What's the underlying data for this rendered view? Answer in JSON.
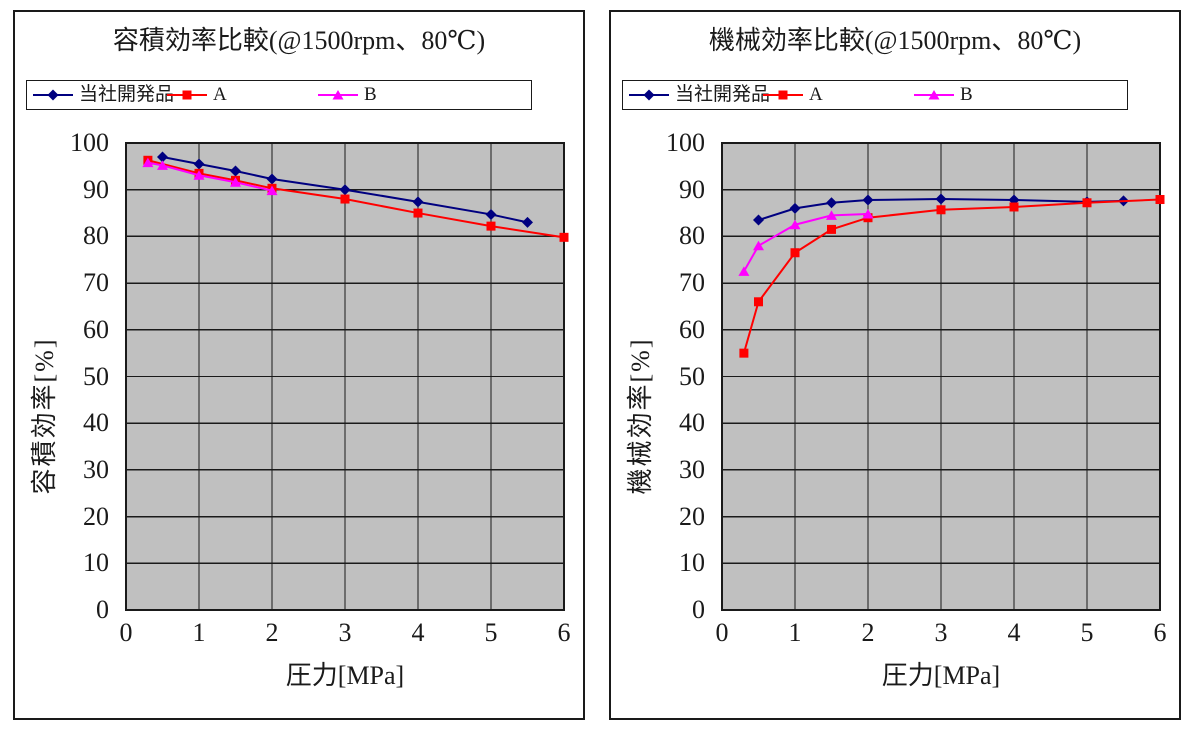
{
  "colors": {
    "series_navy": "#000080",
    "series_red": "#ff0000",
    "series_magenta": "#ff00ff",
    "plot_background": "#c0c0c0",
    "grid_line": "#1a1a1a"
  },
  "chart_data": [
    {
      "type": "line",
      "title": "容積効率比較(@1500rpm、80℃)",
      "xlabel": "圧力[MPa]",
      "ylabel": "容積効率[%]",
      "xlim": [
        0,
        6
      ],
      "ylim": [
        0,
        100
      ],
      "x_ticks": [
        0,
        1,
        2,
        3,
        4,
        5,
        6
      ],
      "y_ticks": [
        0,
        10,
        20,
        30,
        40,
        50,
        60,
        70,
        80,
        90,
        100
      ],
      "grid": true,
      "legend_position": "top",
      "series": [
        {
          "name": "当社開発品",
          "color": "#000080",
          "marker": "diamond",
          "points": [
            [
              0.5,
              97
            ],
            [
              1,
              95.5
            ],
            [
              1.5,
              94
            ],
            [
              2,
              92.3
            ],
            [
              3,
              90
            ],
            [
              4,
              87.4
            ],
            [
              5,
              84.7
            ],
            [
              5.5,
              83
            ]
          ]
        },
        {
          "name": "A",
          "color": "#ff0000",
          "marker": "square",
          "points": [
            [
              0.3,
              96.3
            ],
            [
              1,
              93.5
            ],
            [
              1.5,
              92
            ],
            [
              2,
              90.3
            ],
            [
              3,
              88
            ],
            [
              4,
              85
            ],
            [
              5,
              82.2
            ],
            [
              6,
              79.8
            ]
          ]
        },
        {
          "name": "B",
          "color": "#ff00ff",
          "marker": "triangle",
          "points": [
            [
              0.3,
              95.8
            ],
            [
              0.5,
              95.2
            ],
            [
              1,
              93.1
            ],
            [
              1.5,
              91.6
            ],
            [
              2,
              89.8
            ]
          ]
        }
      ]
    },
    {
      "type": "line",
      "title": "機械効率比較(@1500rpm、80℃)",
      "xlabel": "圧力[MPa]",
      "ylabel": "機械効率[%]",
      "xlim": [
        0,
        6
      ],
      "ylim": [
        0,
        100
      ],
      "x_ticks": [
        0,
        1,
        2,
        3,
        4,
        5,
        6
      ],
      "y_ticks": [
        0,
        10,
        20,
        30,
        40,
        50,
        60,
        70,
        80,
        90,
        100
      ],
      "grid": true,
      "legend_position": "top",
      "series": [
        {
          "name": "当社開発品",
          "color": "#000080",
          "marker": "diamond",
          "points": [
            [
              0.5,
              83.5
            ],
            [
              1,
              86
            ],
            [
              1.5,
              87.2
            ],
            [
              2,
              87.8
            ],
            [
              3,
              88
            ],
            [
              4,
              87.8
            ],
            [
              5,
              87.4
            ],
            [
              5.5,
              87.6
            ]
          ]
        },
        {
          "name": "A",
          "color": "#ff0000",
          "marker": "square",
          "points": [
            [
              0.3,
              55
            ],
            [
              0.5,
              66
            ],
            [
              1,
              76.5
            ],
            [
              1.5,
              81.5
            ],
            [
              2,
              84
            ],
            [
              3,
              85.7
            ],
            [
              4,
              86.3
            ],
            [
              5,
              87.2
            ],
            [
              6,
              87.9
            ]
          ]
        },
        {
          "name": "B",
          "color": "#ff00ff",
          "marker": "triangle",
          "points": [
            [
              0.3,
              72.5
            ],
            [
              0.5,
              78
            ],
            [
              1,
              82.5
            ],
            [
              1.5,
              84.5
            ],
            [
              2,
              84.8
            ]
          ]
        }
      ]
    }
  ]
}
